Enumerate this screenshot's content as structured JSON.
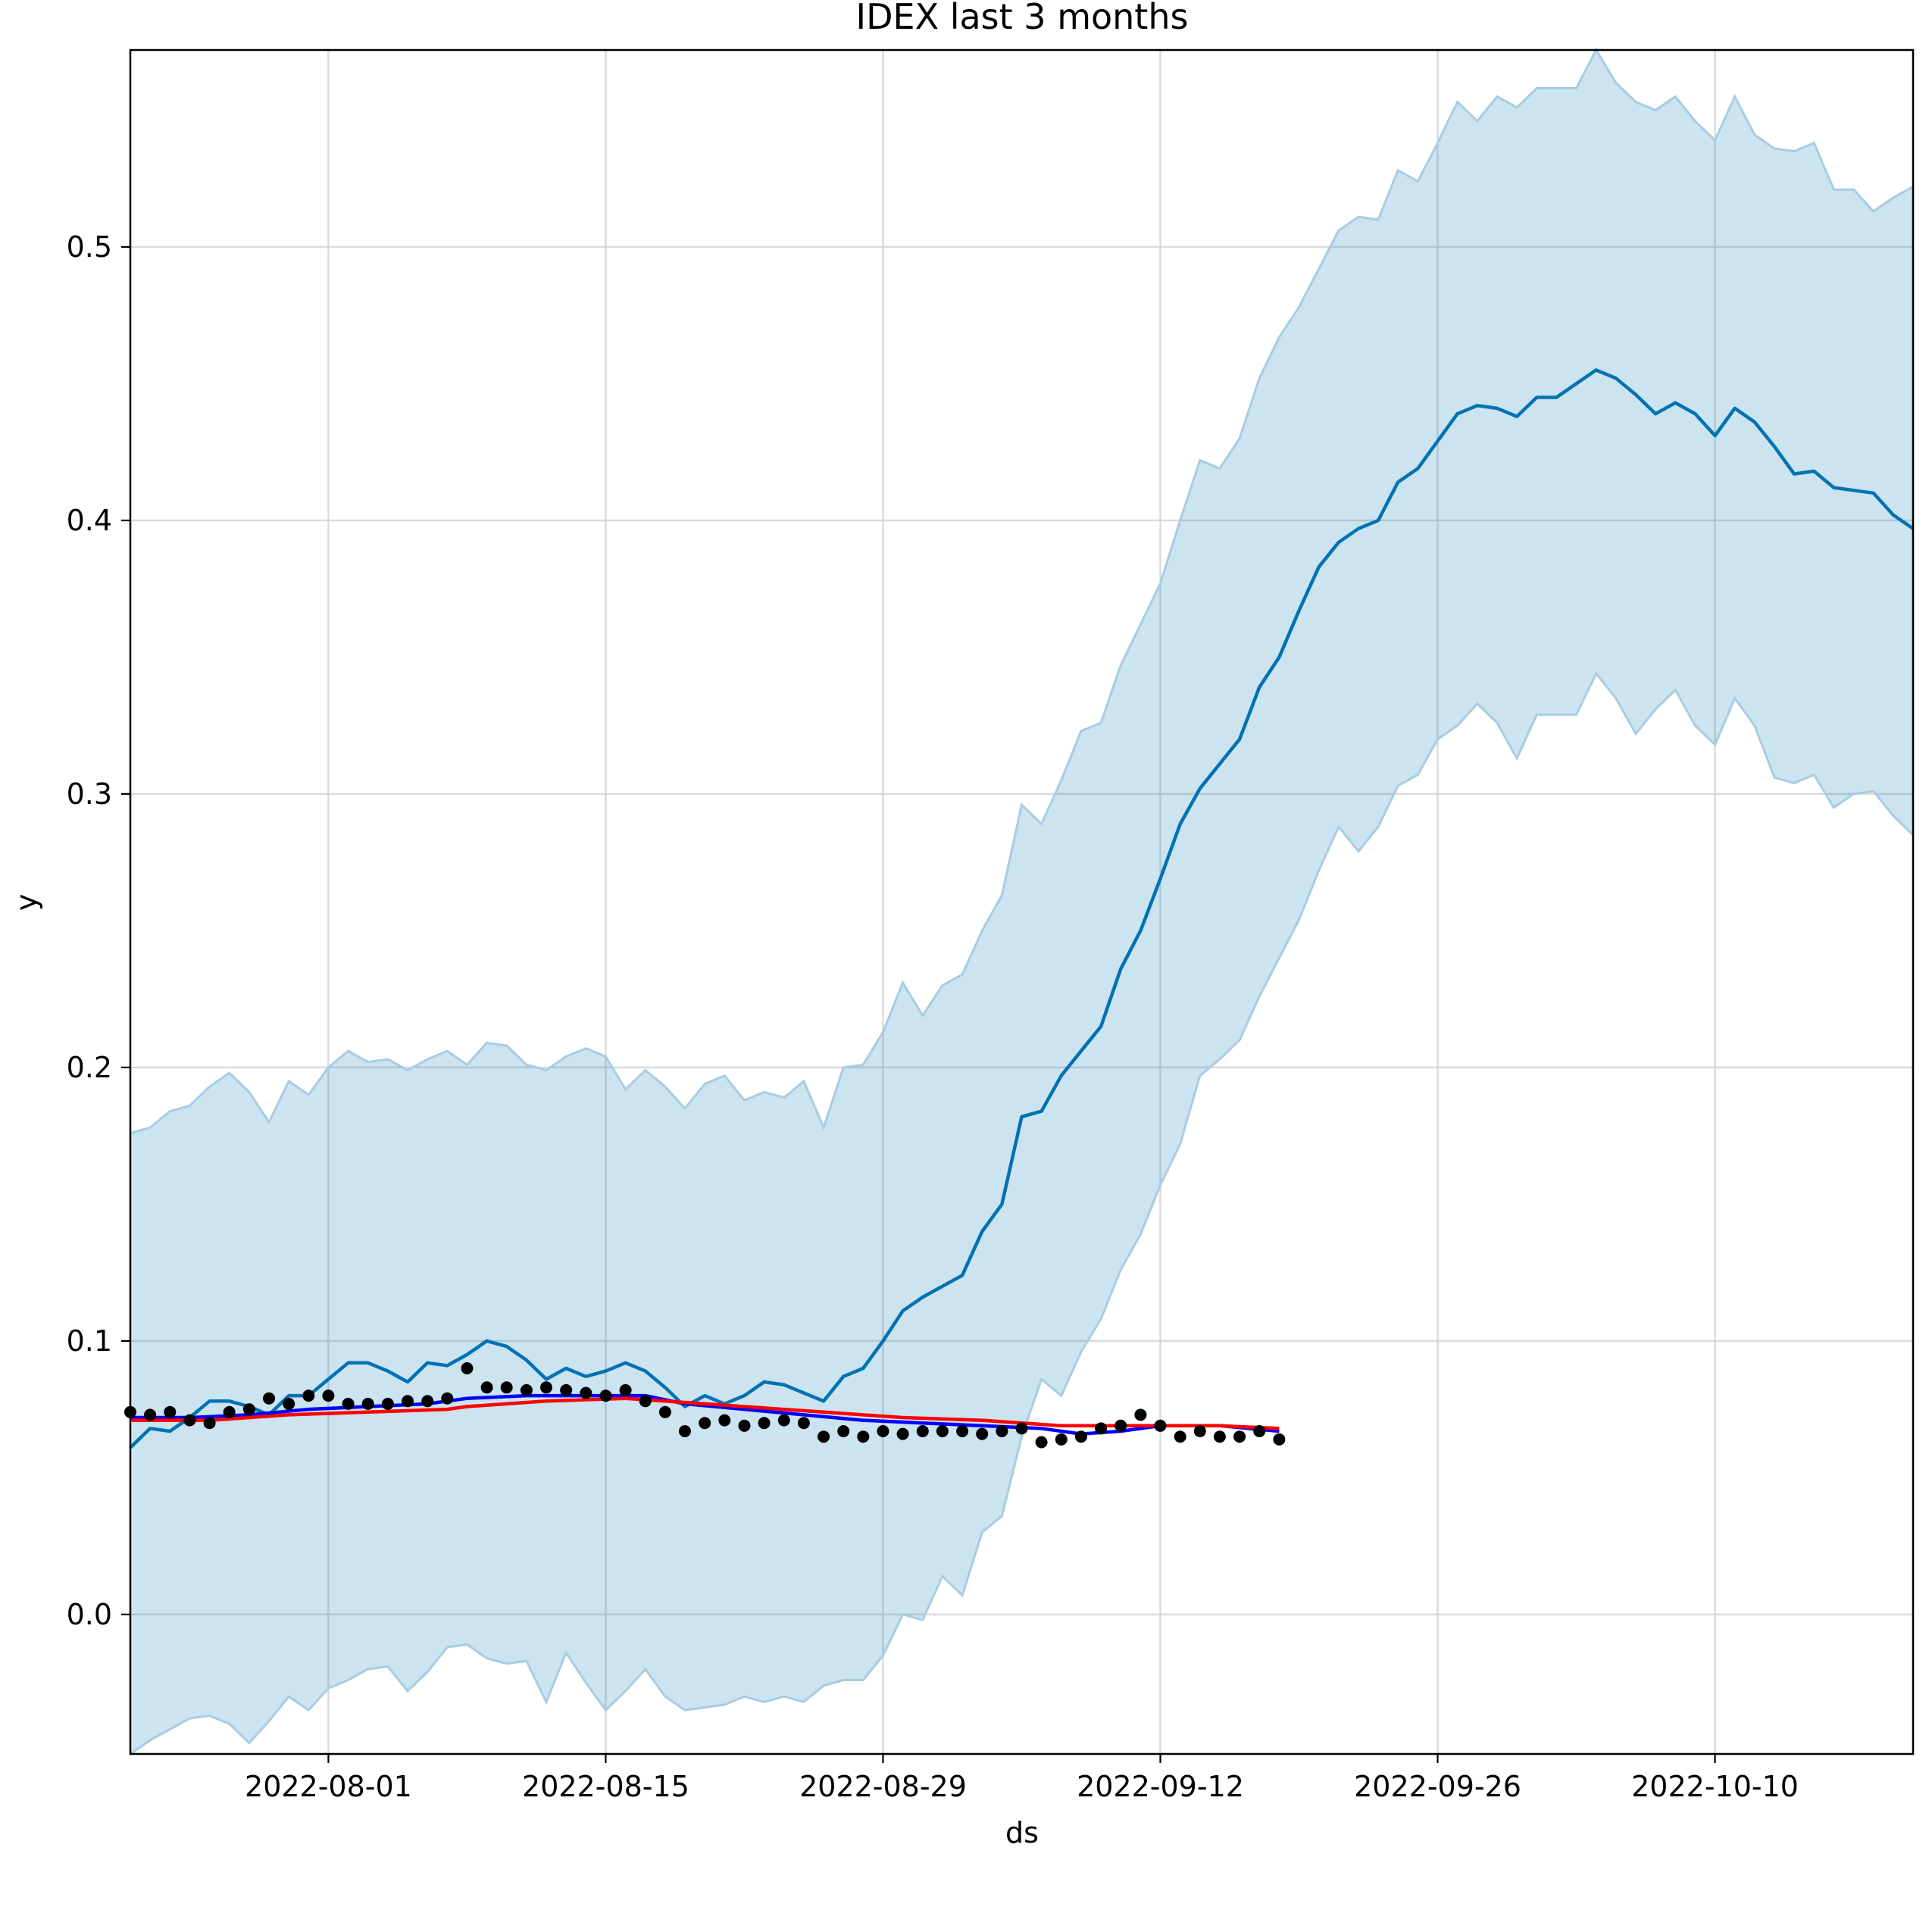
{
  "chart_data": {
    "type": "line",
    "title": "IDEX last 3 months",
    "xlabel": "ds",
    "ylabel": "y",
    "x_range": [
      "2022-07-22",
      "2022-10-20"
    ],
    "ylim": [
      -0.051,
      0.572
    ],
    "x_ticks": [
      "2022-08-01",
      "2022-08-15",
      "2022-08-29",
      "2022-09-12",
      "2022-09-26",
      "2022-10-10"
    ],
    "y_ticks": [
      {
        "value": 0.0,
        "label": "0.0"
      },
      {
        "value": 0.1,
        "label": "0.1"
      },
      {
        "value": 0.2,
        "label": "0.2"
      },
      {
        "value": 0.3,
        "label": "0.3"
      },
      {
        "value": 0.4,
        "label": "0.4"
      },
      {
        "value": 0.5,
        "label": "0.5"
      }
    ],
    "grid": true,
    "legend": "none",
    "colors": {
      "forecast": "#0072b2",
      "band_fill": "#0072b2",
      "band_edge": "#a6cde3",
      "blue_line": "#0000ff",
      "red_line": "#ff0000",
      "observed": "#000000"
    },
    "series": [
      {
        "role": "forecast_band",
        "x": [
          "2022-07-22",
          "2022-07-23",
          "2022-07-24",
          "2022-07-25",
          "2022-07-26",
          "2022-07-27",
          "2022-07-28",
          "2022-07-29",
          "2022-07-30",
          "2022-07-31",
          "2022-08-01",
          "2022-08-02",
          "2022-08-03",
          "2022-08-04",
          "2022-08-05",
          "2022-08-06",
          "2022-08-07",
          "2022-08-08",
          "2022-08-09",
          "2022-08-10",
          "2022-08-11",
          "2022-08-12",
          "2022-08-13",
          "2022-08-14",
          "2022-08-15",
          "2022-08-16",
          "2022-08-17",
          "2022-08-18",
          "2022-08-19",
          "2022-08-20",
          "2022-08-21",
          "2022-08-22",
          "2022-08-23",
          "2022-08-24",
          "2022-08-25",
          "2022-08-26",
          "2022-08-27",
          "2022-08-28",
          "2022-08-29",
          "2022-08-30",
          "2022-08-31",
          "2022-09-01",
          "2022-09-02",
          "2022-09-03",
          "2022-09-04",
          "2022-09-05",
          "2022-09-06",
          "2022-09-07",
          "2022-09-08",
          "2022-09-09",
          "2022-09-10",
          "2022-09-11",
          "2022-09-12",
          "2022-09-13",
          "2022-09-14",
          "2022-09-15",
          "2022-09-16",
          "2022-09-17",
          "2022-09-18",
          "2022-09-19",
          "2022-09-20",
          "2022-09-21",
          "2022-09-22",
          "2022-09-23",
          "2022-09-24",
          "2022-09-25",
          "2022-09-26",
          "2022-09-27",
          "2022-09-28",
          "2022-09-29",
          "2022-09-30",
          "2022-10-01",
          "2022-10-02",
          "2022-10-03",
          "2022-10-04",
          "2022-10-05",
          "2022-10-06",
          "2022-10-07",
          "2022-10-08",
          "2022-10-09",
          "2022-10-10",
          "2022-10-11",
          "2022-10-12",
          "2022-10-13",
          "2022-10-14",
          "2022-10-15",
          "2022-10-16",
          "2022-10-17",
          "2022-10-18",
          "2022-10-19",
          "2022-10-20"
        ],
        "upper": [
          0.176,
          0.178,
          0.184,
          0.186,
          0.193,
          0.198,
          0.191,
          0.18,
          0.195,
          0.19,
          0.2,
          0.206,
          0.202,
          0.203,
          0.199,
          0.203,
          0.206,
          0.201,
          0.209,
          0.208,
          0.201,
          0.199,
          0.204,
          0.207,
          0.204,
          0.192,
          0.199,
          0.193,
          0.185,
          0.194,
          0.197,
          0.188,
          0.191,
          0.189,
          0.195,
          0.178,
          0.2,
          0.201,
          0.213,
          0.231,
          0.219,
          0.23,
          0.234,
          0.25,
          0.263,
          0.296,
          0.289,
          0.305,
          0.323,
          0.326,
          0.347,
          0.362,
          0.377,
          0.4,
          0.422,
          0.419,
          0.43,
          0.452,
          0.467,
          0.478,
          0.492,
          0.506,
          0.511,
          0.51,
          0.528,
          0.524,
          0.538,
          0.553,
          0.546,
          0.555,
          0.551,
          0.558,
          0.558,
          0.558,
          0.572,
          0.56,
          0.553,
          0.55,
          0.555,
          0.546,
          0.539,
          0.555,
          0.541,
          0.536,
          0.535,
          0.538,
          0.521,
          0.521,
          0.513,
          0.518,
          0.522
        ],
        "lower": [
          -0.051,
          -0.046,
          -0.042,
          -0.038,
          -0.037,
          -0.04,
          -0.047,
          -0.039,
          -0.03,
          -0.035,
          -0.027,
          -0.024,
          -0.02,
          -0.019,
          -0.028,
          -0.021,
          -0.012,
          -0.011,
          -0.016,
          -0.018,
          -0.017,
          -0.032,
          -0.014,
          -0.025,
          -0.035,
          -0.028,
          -0.02,
          -0.03,
          -0.035,
          -0.034,
          -0.033,
          -0.03,
          -0.032,
          -0.03,
          -0.032,
          -0.026,
          -0.024,
          -0.024,
          -0.015,
          0.0,
          -0.002,
          0.014,
          0.007,
          0.03,
          0.036,
          0.065,
          0.086,
          0.08,
          0.096,
          0.108,
          0.126,
          0.139,
          0.157,
          0.172,
          0.197,
          0.203,
          0.21,
          0.226,
          0.24,
          0.254,
          0.272,
          0.288,
          0.279,
          0.288,
          0.303,
          0.307,
          0.32,
          0.325,
          0.333,
          0.326,
          0.313,
          0.329,
          0.329,
          0.329,
          0.344,
          0.335,
          0.322,
          0.331,
          0.338,
          0.325,
          0.318,
          0.335,
          0.325,
          0.306,
          0.304,
          0.307,
          0.295,
          0.3,
          0.301,
          0.292,
          0.285
        ]
      },
      {
        "role": "forecast",
        "x": [
          "2022-07-22",
          "2022-07-23",
          "2022-07-24",
          "2022-07-25",
          "2022-07-26",
          "2022-07-27",
          "2022-07-28",
          "2022-07-29",
          "2022-07-30",
          "2022-07-31",
          "2022-08-01",
          "2022-08-02",
          "2022-08-03",
          "2022-08-04",
          "2022-08-05",
          "2022-08-06",
          "2022-08-07",
          "2022-08-08",
          "2022-08-09",
          "2022-08-10",
          "2022-08-11",
          "2022-08-12",
          "2022-08-13",
          "2022-08-14",
          "2022-08-15",
          "2022-08-16",
          "2022-08-17",
          "2022-08-18",
          "2022-08-19",
          "2022-08-20",
          "2022-08-21",
          "2022-08-22",
          "2022-08-23",
          "2022-08-24",
          "2022-08-25",
          "2022-08-26",
          "2022-08-27",
          "2022-08-28",
          "2022-08-29",
          "2022-08-30",
          "2022-08-31",
          "2022-09-01",
          "2022-09-02",
          "2022-09-03",
          "2022-09-04",
          "2022-09-05",
          "2022-09-06",
          "2022-09-07",
          "2022-09-08",
          "2022-09-09",
          "2022-09-10",
          "2022-09-11",
          "2022-09-12",
          "2022-09-13",
          "2022-09-14",
          "2022-09-15",
          "2022-09-16",
          "2022-09-17",
          "2022-09-18",
          "2022-09-19",
          "2022-09-20",
          "2022-09-21",
          "2022-09-22",
          "2022-09-23",
          "2022-09-24",
          "2022-09-25",
          "2022-09-26",
          "2022-09-27",
          "2022-09-28",
          "2022-09-29",
          "2022-09-30",
          "2022-10-01",
          "2022-10-02",
          "2022-10-03",
          "2022-10-04",
          "2022-10-05",
          "2022-10-06",
          "2022-10-07",
          "2022-10-08",
          "2022-10-09",
          "2022-10-10",
          "2022-10-11",
          "2022-10-12",
          "2022-10-13",
          "2022-10-14",
          "2022-10-15",
          "2022-10-16",
          "2022-10-17",
          "2022-10-18",
          "2022-10-19",
          "2022-10-20"
        ],
        "values": [
          0.061,
          0.068,
          0.067,
          0.072,
          0.078,
          0.078,
          0.076,
          0.073,
          0.08,
          0.08,
          0.086,
          0.092,
          0.092,
          0.089,
          0.085,
          0.092,
          0.091,
          0.095,
          0.1,
          0.098,
          0.093,
          0.086,
          0.09,
          0.087,
          0.089,
          0.092,
          0.089,
          0.083,
          0.076,
          0.08,
          0.077,
          0.08,
          0.085,
          0.084,
          0.081,
          0.078,
          0.087,
          0.09,
          0.1,
          0.111,
          0.116,
          0.12,
          0.124,
          0.14,
          0.15,
          0.182,
          0.184,
          0.197,
          0.206,
          0.215,
          0.236,
          0.25,
          0.269,
          0.289,
          0.302,
          0.311,
          0.32,
          0.339,
          0.35,
          0.367,
          0.383,
          0.392,
          0.397,
          0.4,
          0.414,
          0.419,
          0.429,
          0.439,
          0.442,
          0.441,
          0.438,
          0.445,
          0.445,
          0.45,
          0.455,
          0.452,
          0.446,
          0.439,
          0.443,
          0.439,
          0.431,
          0.441,
          0.436,
          0.427,
          0.417,
          0.418,
          0.412,
          0.411,
          0.41,
          0.402,
          0.397
        ]
      },
      {
        "role": "blue_line",
        "x": [
          "2022-07-22",
          "2022-07-25",
          "2022-07-28",
          "2022-07-31",
          "2022-08-03",
          "2022-08-06",
          "2022-08-08",
          "2022-08-11",
          "2022-08-14",
          "2022-08-17",
          "2022-08-19",
          "2022-08-22",
          "2022-08-25",
          "2022-08-28",
          "2022-08-31",
          "2022-09-03",
          "2022-09-06",
          "2022-09-08",
          "2022-09-10",
          "2022-09-12",
          "2022-09-15",
          "2022-09-18"
        ],
        "values": [
          0.072,
          0.072,
          0.073,
          0.075,
          0.076,
          0.077,
          0.079,
          0.08,
          0.08,
          0.08,
          0.077,
          0.075,
          0.073,
          0.071,
          0.07,
          0.069,
          0.068,
          0.066,
          0.067,
          0.069,
          0.069,
          0.067
        ]
      },
      {
        "role": "red_line",
        "x": [
          "2022-07-22",
          "2022-07-26",
          "2022-07-30",
          "2022-08-03",
          "2022-08-07",
          "2022-08-08",
          "2022-08-12",
          "2022-08-16",
          "2022-08-18",
          "2022-08-22",
          "2022-08-26",
          "2022-08-30",
          "2022-09-03",
          "2022-09-07",
          "2022-09-11",
          "2022-09-15",
          "2022-09-18"
        ],
        "values": [
          0.071,
          0.071,
          0.073,
          0.074,
          0.075,
          0.076,
          0.078,
          0.079,
          0.078,
          0.076,
          0.074,
          0.072,
          0.071,
          0.069,
          0.069,
          0.069,
          0.068
        ]
      },
      {
        "role": "observed",
        "x": [
          "2022-07-22",
          "2022-07-23",
          "2022-07-24",
          "2022-07-25",
          "2022-07-26",
          "2022-07-27",
          "2022-07-28",
          "2022-07-29",
          "2022-07-30",
          "2022-07-31",
          "2022-08-01",
          "2022-08-02",
          "2022-08-03",
          "2022-08-04",
          "2022-08-05",
          "2022-08-06",
          "2022-08-07",
          "2022-08-08",
          "2022-08-09",
          "2022-08-10",
          "2022-08-11",
          "2022-08-12",
          "2022-08-13",
          "2022-08-14",
          "2022-08-15",
          "2022-08-16",
          "2022-08-17",
          "2022-08-18",
          "2022-08-19",
          "2022-08-20",
          "2022-08-21",
          "2022-08-22",
          "2022-08-23",
          "2022-08-24",
          "2022-08-25",
          "2022-08-26",
          "2022-08-27",
          "2022-08-28",
          "2022-08-29",
          "2022-08-30",
          "2022-08-31",
          "2022-09-01",
          "2022-09-02",
          "2022-09-03",
          "2022-09-04",
          "2022-09-05",
          "2022-09-06",
          "2022-09-07",
          "2022-09-08",
          "2022-09-09",
          "2022-09-10",
          "2022-09-11",
          "2022-09-12",
          "2022-09-13",
          "2022-09-14",
          "2022-09-15",
          "2022-09-16",
          "2022-09-17",
          "2022-09-18"
        ],
        "values": [
          0.074,
          0.073,
          0.074,
          0.071,
          0.07,
          0.074,
          0.075,
          0.079,
          0.077,
          0.08,
          0.08,
          0.077,
          0.077,
          0.077,
          0.078,
          0.078,
          0.079,
          0.09,
          0.083,
          0.083,
          0.082,
          0.083,
          0.082,
          0.081,
          0.08,
          0.082,
          0.078,
          0.074,
          0.067,
          0.07,
          0.071,
          0.069,
          0.07,
          0.071,
          0.07,
          0.065,
          0.067,
          0.065,
          0.067,
          0.066,
          0.067,
          0.067,
          0.067,
          0.066,
          0.067,
          0.068,
          0.063,
          0.064,
          0.065,
          0.068,
          0.069,
          0.073,
          0.069,
          0.065,
          0.067,
          0.065,
          0.065,
          0.067,
          0.064
        ]
      }
    ]
  }
}
